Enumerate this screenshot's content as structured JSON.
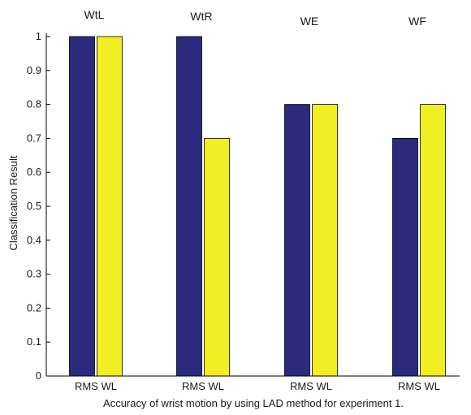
{
  "chart_data": {
    "type": "bar",
    "xlabel": "Accuracy of wrist motion by using LAD method for experiment 1.",
    "ylabel": "Classification Result",
    "ylim": [
      0,
      1
    ],
    "yticks": [
      0,
      0.1,
      0.2,
      0.3,
      0.4,
      0.5,
      0.6,
      0.7,
      0.8,
      0.9,
      1
    ],
    "ytick_labels": [
      "0",
      "0.1",
      "0.2",
      "0.3",
      "0.4",
      "0.5",
      "0.6",
      "0.7",
      "0.8",
      "0.9",
      "1"
    ],
    "categories": [
      "WtL",
      "WtR",
      "WE",
      "WF"
    ],
    "bar_labels": [
      "RMS",
      "WL"
    ],
    "group_label_text": "RMS WL",
    "series": [
      {
        "values": [
          1.0,
          1.0,
          0.8,
          0.7
        ],
        "color": "#2b2a7d"
      },
      {
        "values": [
          1.0,
          0.7,
          0.8,
          0.8
        ],
        "color": "#f2ee24"
      }
    ],
    "grid": false,
    "legend": "none"
  }
}
